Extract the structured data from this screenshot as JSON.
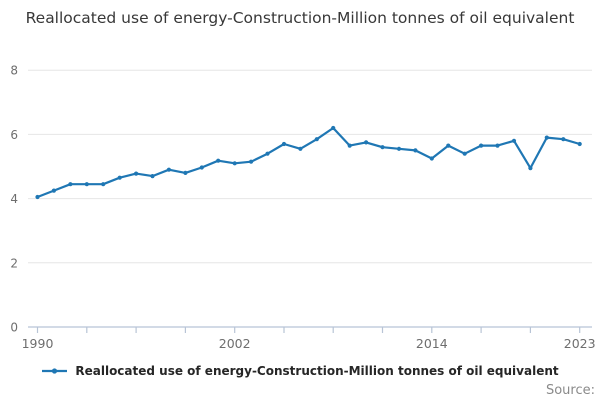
{
  "title": "Reallocated use of energy-Construction-Million tonnes of oil equivalent",
  "legend": {
    "label": "Reallocated use of energy-Construction-Million tonnes of oil equivalent"
  },
  "footer": {
    "source_label": "Source:"
  },
  "colors": {
    "line": "#1f77b4",
    "grid": "#e6e6e6",
    "axis": "#b8c4d6",
    "tick_label": "#6e6e6e",
    "title_text": "#383838",
    "legend_text": "#262626",
    "source_text": "#8a8a8a"
  },
  "chart_data": {
    "type": "line",
    "title": "Reallocated use of energy-Construction-Million tonnes of oil equivalent",
    "xlabel": "",
    "ylabel": "",
    "x": [
      1990,
      1991,
      1992,
      1993,
      1994,
      1995,
      1996,
      1997,
      1998,
      1999,
      2000,
      2001,
      2002,
      2003,
      2004,
      2005,
      2006,
      2007,
      2008,
      2009,
      2010,
      2011,
      2012,
      2013,
      2014,
      2015,
      2016,
      2017,
      2018,
      2019,
      2020,
      2021,
      2022,
      2023
    ],
    "values": [
      4.05,
      4.25,
      4.45,
      4.45,
      4.45,
      4.65,
      4.78,
      4.7,
      4.9,
      4.8,
      4.97,
      5.18,
      5.1,
      5.15,
      5.4,
      5.7,
      5.55,
      5.85,
      6.2,
      5.65,
      5.75,
      5.6,
      5.55,
      5.5,
      5.25,
      5.65,
      5.4,
      5.65,
      5.65,
      5.8,
      4.95,
      5.9,
      5.85,
      5.7
    ],
    "series_name": "Reallocated use of energy-Construction-Million tonnes of oil equivalent",
    "ylim": [
      0,
      8.3
    ],
    "ytick_values": [
      0,
      2,
      4,
      6,
      8
    ],
    "ytick_labels": [
      "0",
      "2",
      "4",
      "6",
      "8"
    ],
    "xtick_interval": 3,
    "xtick_labels": [
      {
        "year": 1990,
        "label": "1990"
      },
      {
        "year": 2002,
        "label": "2002"
      },
      {
        "year": 2014,
        "label": "2014"
      },
      {
        "year": 2023,
        "label": "2023"
      }
    ],
    "grid": "horizontal",
    "legend_position": "bottom",
    "marker": "dot"
  }
}
